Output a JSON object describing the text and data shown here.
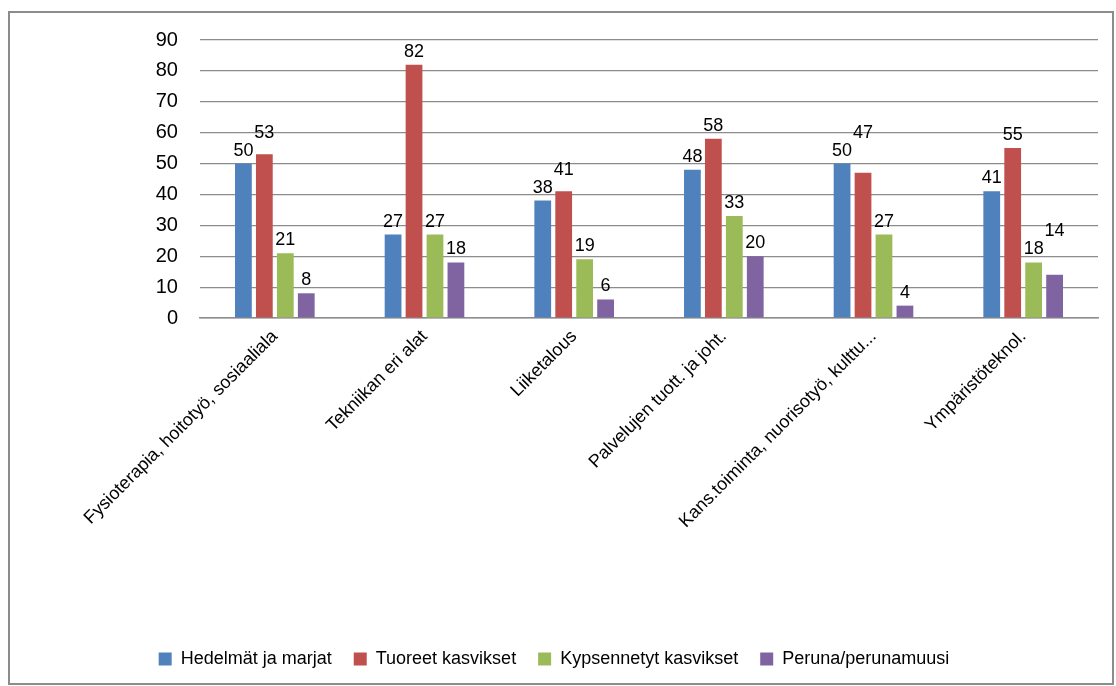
{
  "chart_data": {
    "type": "bar",
    "categories": [
      "Fysioterapia, hoitotyö, sosiaaliala",
      "Tekniikan eri alat",
      "Liiketalous",
      "Palvelujen tuott. ja joht.",
      "Kans.toiminta, nuorisotyö, kulttu...",
      "Ympäristöteknol."
    ],
    "series": [
      {
        "name": "Hedelmät ja marjat",
        "color": "#4f81bd",
        "values": [
          50,
          27,
          38,
          48,
          50,
          41
        ]
      },
      {
        "name": "Tuoreet kasvikset",
        "color": "#c0504d",
        "values": [
          53,
          82,
          41,
          58,
          47,
          55
        ]
      },
      {
        "name": "Kypsennetyt kasvikset",
        "color": "#9bbb59",
        "values": [
          21,
          27,
          19,
          33,
          27,
          18
        ]
      },
      {
        "name": "Peruna/perunamuusi",
        "color": "#8064a2",
        "values": [
          8,
          18,
          6,
          20,
          4,
          14
        ]
      }
    ],
    "ylim": [
      0,
      90
    ],
    "yticks": [
      0,
      10,
      20,
      30,
      40,
      50,
      60,
      70,
      80,
      90
    ],
    "grid": "y",
    "legend": "bottom",
    "data_labels": true
  }
}
